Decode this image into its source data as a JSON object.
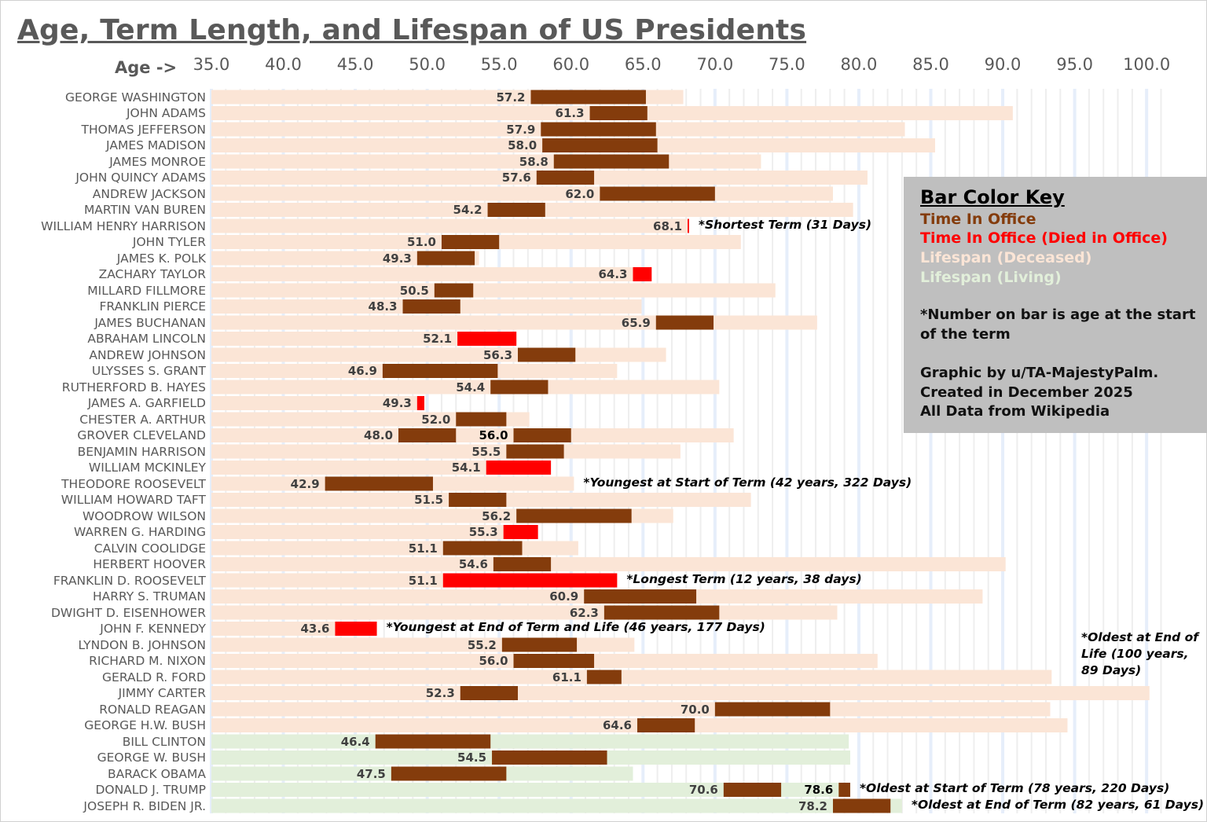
{
  "chart_data": {
    "type": "bar",
    "subtype": "horizontal-floating-range",
    "title": "Age, Term Length, and Lifespan of US Presidents",
    "xlabel": "Age ->",
    "xlim": [
      35,
      101
    ],
    "xticks": [
      "35.0",
      "40.0",
      "45.0",
      "50.0",
      "55.0",
      "60.0",
      "65.0",
      "70.0",
      "75.0",
      "80.0",
      "85.0",
      "90.0",
      "95.0",
      "100.0"
    ],
    "grid": "vertical, every year (highlighted every 5 years)",
    "colors": {
      "office": "#843C0C",
      "died_in_office": "#FF0000",
      "lifespan_deceased": "#FBE5D6",
      "lifespan_living": "#E2EFDA",
      "grid": "#eeeeee",
      "grid_major": "#e6eefa"
    },
    "presidents": [
      {
        "name": "GEORGE WASHINGTON",
        "terms": [
          [
            57.2,
            65.2
          ]
        ],
        "life_end": 67.8,
        "living": false,
        "died_in_office": false
      },
      {
        "name": "JOHN ADAMS",
        "terms": [
          [
            61.3,
            65.3
          ]
        ],
        "life_end": 90.7,
        "living": false,
        "died_in_office": false
      },
      {
        "name": "THOMAS JEFFERSON",
        "terms": [
          [
            57.9,
            65.9
          ]
        ],
        "life_end": 83.2,
        "living": false,
        "died_in_office": false
      },
      {
        "name": "JAMES MADISON",
        "terms": [
          [
            58.0,
            66.0
          ]
        ],
        "life_end": 85.3,
        "living": false,
        "died_in_office": false
      },
      {
        "name": "JAMES MONROE",
        "terms": [
          [
            58.8,
            66.8
          ]
        ],
        "life_end": 73.2,
        "living": false,
        "died_in_office": false
      },
      {
        "name": "JOHN QUINCY ADAMS",
        "terms": [
          [
            57.6,
            61.6
          ]
        ],
        "life_end": 80.6,
        "living": false,
        "died_in_office": false
      },
      {
        "name": "ANDREW JACKSON",
        "terms": [
          [
            62.0,
            70.0
          ]
        ],
        "life_end": 78.2,
        "living": false,
        "died_in_office": false
      },
      {
        "name": "MARTIN VAN BUREN",
        "terms": [
          [
            54.2,
            58.2
          ]
        ],
        "life_end": 79.6,
        "living": false,
        "died_in_office": false
      },
      {
        "name": "WILLIAM HENRY HARRISON",
        "terms": [
          [
            68.1,
            68.2
          ]
        ],
        "life_end": 68.2,
        "living": false,
        "died_in_office": true,
        "annotation": "*Shortest Term (31 Days)"
      },
      {
        "name": "JOHN TYLER",
        "terms": [
          [
            51.0,
            55.0
          ]
        ],
        "life_end": 71.8,
        "living": false,
        "died_in_office": false
      },
      {
        "name": "JAMES K. POLK",
        "terms": [
          [
            49.3,
            53.3
          ]
        ],
        "life_end": 53.6,
        "living": false,
        "died_in_office": false
      },
      {
        "name": "ZACHARY TAYLOR",
        "terms": [
          [
            64.3,
            65.6
          ]
        ],
        "life_end": 65.6,
        "living": false,
        "died_in_office": true
      },
      {
        "name": "MILLARD FILLMORE",
        "terms": [
          [
            50.5,
            53.2
          ]
        ],
        "life_end": 74.2,
        "living": false,
        "died_in_office": false
      },
      {
        "name": "FRANKLIN PIERCE",
        "terms": [
          [
            48.3,
            52.3
          ]
        ],
        "life_end": 64.9,
        "living": false,
        "died_in_office": false
      },
      {
        "name": "JAMES BUCHANAN",
        "terms": [
          [
            65.9,
            69.9
          ]
        ],
        "life_end": 77.1,
        "living": false,
        "died_in_office": false
      },
      {
        "name": "ABRAHAM LINCOLN",
        "terms": [
          [
            52.1,
            56.2
          ]
        ],
        "life_end": 56.2,
        "living": false,
        "died_in_office": true
      },
      {
        "name": "ANDREW JOHNSON",
        "terms": [
          [
            56.3,
            60.3
          ]
        ],
        "life_end": 66.6,
        "living": false,
        "died_in_office": false
      },
      {
        "name": "ULYSSES S. GRANT",
        "terms": [
          [
            46.9,
            54.9
          ]
        ],
        "life_end": 63.2,
        "living": false,
        "died_in_office": false
      },
      {
        "name": "RUTHERFORD B. HAYES",
        "terms": [
          [
            54.4,
            58.4
          ]
        ],
        "life_end": 70.3,
        "living": false,
        "died_in_office": false
      },
      {
        "name": "JAMES A. GARFIELD",
        "terms": [
          [
            49.3,
            49.8
          ]
        ],
        "life_end": 49.8,
        "living": false,
        "died_in_office": true
      },
      {
        "name": "CHESTER A. ARTHUR",
        "terms": [
          [
            52.0,
            55.5
          ]
        ],
        "life_end": 57.1,
        "living": false,
        "died_in_office": false
      },
      {
        "name": "GROVER CLEVELAND",
        "terms": [
          [
            48.0,
            52.0
          ],
          [
            56.0,
            60.0
          ]
        ],
        "life_end": 71.3,
        "living": false,
        "died_in_office": false
      },
      {
        "name": "BENJAMIN HARRISON",
        "terms": [
          [
            55.5,
            59.5
          ]
        ],
        "life_end": 67.6,
        "living": false,
        "died_in_office": false
      },
      {
        "name": "WILLIAM MCKINLEY",
        "terms": [
          [
            54.1,
            58.6
          ]
        ],
        "life_end": 58.6,
        "living": false,
        "died_in_office": true
      },
      {
        "name": "THEODORE ROOSEVELT",
        "terms": [
          [
            42.9,
            50.4
          ]
        ],
        "life_end": 60.2,
        "living": false,
        "died_in_office": false,
        "annotation": "*Youngest at Start of Term (42 years, 322 Days)"
      },
      {
        "name": "WILLIAM HOWARD TAFT",
        "terms": [
          [
            51.5,
            55.5
          ]
        ],
        "life_end": 72.5,
        "living": false,
        "died_in_office": false
      },
      {
        "name": "WOODROW WILSON",
        "terms": [
          [
            56.2,
            64.2
          ]
        ],
        "life_end": 67.1,
        "living": false,
        "died_in_office": false
      },
      {
        "name": "WARREN G. HARDING",
        "terms": [
          [
            55.3,
            57.7
          ]
        ],
        "life_end": 57.7,
        "living": false,
        "died_in_office": true
      },
      {
        "name": "CALVIN COOLIDGE",
        "terms": [
          [
            51.1,
            56.6
          ]
        ],
        "life_end": 60.5,
        "living": false,
        "died_in_office": false
      },
      {
        "name": "HERBERT HOOVER",
        "terms": [
          [
            54.6,
            58.6
          ]
        ],
        "life_end": 90.2,
        "living": false,
        "died_in_office": false
      },
      {
        "name": "FRANKLIN D. ROOSEVELT",
        "terms": [
          [
            51.1,
            63.2
          ]
        ],
        "life_end": 63.2,
        "living": false,
        "died_in_office": true,
        "annotation": "*Longest Term (12 years, 38 days)"
      },
      {
        "name": "HARRY S. TRUMAN",
        "terms": [
          [
            60.9,
            68.7
          ]
        ],
        "life_end": 88.6,
        "living": false,
        "died_in_office": false
      },
      {
        "name": "DWIGHT D. EISENHOWER",
        "terms": [
          [
            62.3,
            70.3
          ]
        ],
        "life_end": 78.5,
        "living": false,
        "died_in_office": false
      },
      {
        "name": "JOHN F. KENNEDY",
        "terms": [
          [
            43.6,
            46.5
          ]
        ],
        "life_end": 46.5,
        "living": false,
        "died_in_office": true,
        "annotation": "*Youngest at End of Term and Life (46 years, 177 Days)"
      },
      {
        "name": "LYNDON B. JOHNSON",
        "terms": [
          [
            55.2,
            60.4
          ]
        ],
        "life_end": 64.4,
        "living": false,
        "died_in_office": false
      },
      {
        "name": "RICHARD M. NIXON",
        "terms": [
          [
            56.0,
            61.6
          ]
        ],
        "life_end": 81.3,
        "living": false,
        "died_in_office": false
      },
      {
        "name": "GERALD R. FORD",
        "terms": [
          [
            61.1,
            63.5
          ]
        ],
        "life_end": 93.4,
        "living": false,
        "died_in_office": false
      },
      {
        "name": "JIMMY CARTER",
        "terms": [
          [
            52.3,
            56.3
          ]
        ],
        "life_end": 100.2,
        "living": false,
        "died_in_office": false
      },
      {
        "name": "RONALD REAGAN",
        "terms": [
          [
            70.0,
            78.0
          ]
        ],
        "life_end": 93.3,
        "living": false,
        "died_in_office": false
      },
      {
        "name": "GEORGE H.W. BUSH",
        "terms": [
          [
            64.6,
            68.6
          ]
        ],
        "life_end": 94.5,
        "living": false,
        "died_in_office": false
      },
      {
        "name": "BILL CLINTON",
        "terms": [
          [
            46.4,
            54.4
          ]
        ],
        "life_end": 79.3,
        "living": true,
        "died_in_office": false
      },
      {
        "name": "GEORGE W. BUSH",
        "terms": [
          [
            54.5,
            62.5
          ]
        ],
        "life_end": 79.4,
        "living": true,
        "died_in_office": false
      },
      {
        "name": "BARACK OBAMA",
        "terms": [
          [
            47.5,
            55.5
          ]
        ],
        "life_end": 64.3,
        "living": true,
        "died_in_office": false
      },
      {
        "name": "DONALD J. TRUMP",
        "terms": [
          [
            70.6,
            74.6
          ],
          [
            78.6,
            79.4
          ]
        ],
        "life_end": 79.4,
        "living": true,
        "died_in_office": false,
        "annotation": "*Oldest at Start of Term (78 years, 220 Days)"
      },
      {
        "name": "JOSEPH R. BIDEN JR.",
        "terms": [
          [
            78.2,
            82.2
          ]
        ],
        "life_end": 83.0,
        "living": true,
        "died_in_office": false,
        "annotation": "*Oldest at End of Term (82 years, 61 Days)"
      }
    ],
    "carter_annotation": "*Oldest at End of Life (100 years, 89 Days)"
  },
  "key": {
    "title": "Bar Color Key",
    "items": [
      {
        "label": "Time In Office",
        "color": "#843C0C"
      },
      {
        "label": "Time In Office (Died in Office)",
        "color": "#FF0000"
      },
      {
        "label": "Lifespan (Deceased)",
        "color": "#FBE5D6"
      },
      {
        "label": "Lifespan (Living)",
        "color": "#E2EFDA"
      }
    ],
    "note_line1": "*Number on bar is age at the start",
    "note_line2": "of the term",
    "credit1": "Graphic by u/TA-MajestyPalm.",
    "credit2": "Created in December 2025",
    "credit3": "All Data from Wikipedia"
  }
}
